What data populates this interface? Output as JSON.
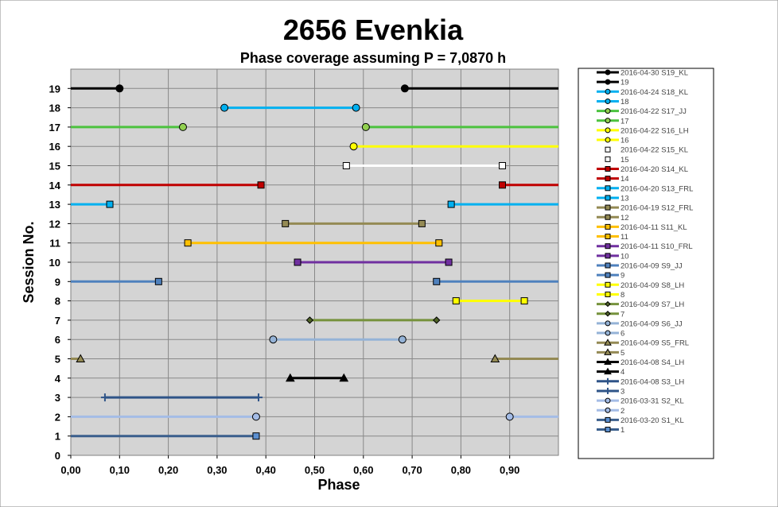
{
  "chart_data": {
    "type": "line",
    "title": "2656 Evenkia",
    "subtitle": "Phase coverage assuming P = 7,0870 h",
    "xlabel": "Phase",
    "ylabel": "Session No.",
    "xlim": [
      0,
      1
    ],
    "ylim": [
      0,
      19
    ],
    "x_ticks": [
      "0,00",
      "0,10",
      "0,20",
      "0,30",
      "0,40",
      "0,50",
      "0,60",
      "0,70",
      "0,80",
      "0,90"
    ],
    "y_ticks": [
      "0",
      "1",
      "2",
      "3",
      "4",
      "5",
      "6",
      "7",
      "8",
      "9",
      "10",
      "11",
      "12",
      "13",
      "14",
      "15",
      "16",
      "17",
      "18",
      "19"
    ],
    "grid": true,
    "legend_position": "right",
    "series": [
      {
        "name": "2016-03-20  S1_KL",
        "short": "1",
        "session": 1,
        "color": "#3a5e8c",
        "marker": "square",
        "marker_color": "#5b8fd0",
        "segments": [
          [
            0.0,
            0.38
          ]
        ]
      },
      {
        "name": "2016-03-31  S2_KL",
        "short": "2",
        "session": 2,
        "color": "#a4bce6",
        "marker": "circle",
        "marker_color": "#a4bce6",
        "segments": [
          [
            0.0,
            0.38
          ],
          [
            0.9,
            1.0
          ]
        ]
      },
      {
        "name": "2016-04-08  S3_LH",
        "short": "3",
        "session": 3,
        "color": "#2f5488",
        "marker": "plus",
        "marker_color": "#2f5488",
        "segments": [
          [
            0.07,
            0.385
          ]
        ]
      },
      {
        "name": "2016-04-08  S4_LH",
        "short": "4",
        "session": 4,
        "color": "#000000",
        "marker": "triangle",
        "marker_color": "#000000",
        "segments": [
          [
            0.45,
            0.56
          ]
        ]
      },
      {
        "name": "2016-04-09  S5_FRL",
        "short": "5",
        "session": 5,
        "color": "#948a54",
        "marker": "triangle",
        "marker_color": "#948a54",
        "segments": [
          [
            0.0,
            0.02
          ],
          [
            0.87,
            1.0
          ]
        ]
      },
      {
        "name": "2016-04-09  S6_JJ",
        "short": "6",
        "session": 6,
        "color": "#95b3d7",
        "marker": "circle",
        "marker_color": "#95b3d7",
        "segments": [
          [
            0.415,
            0.68
          ]
        ]
      },
      {
        "name": "2016-04-09  S7_LH",
        "short": "7",
        "session": 7,
        "color": "#76923c",
        "marker": "diamond",
        "marker_color": "#4f6228",
        "segments": [
          [
            0.49,
            0.75
          ]
        ]
      },
      {
        "name": "2016-04-09  S8_LH",
        "short": "8",
        "session": 8,
        "color": "#ffff00",
        "marker": "square",
        "marker_color": "#ffff00",
        "segments": [
          [
            0.79,
            0.93
          ]
        ]
      },
      {
        "name": "2016-04-09  S9_JJ",
        "short": "9",
        "session": 9,
        "color": "#4f81bd",
        "marker": "square",
        "marker_color": "#4f81bd",
        "segments": [
          [
            0.0,
            0.18
          ],
          [
            0.75,
            1.0
          ]
        ]
      },
      {
        "name": "2016-04-11  S10_FRL",
        "short": "10",
        "session": 10,
        "color": "#7030a0",
        "marker": "square",
        "marker_color": "#7030a0",
        "segments": [
          [
            0.465,
            0.775
          ]
        ]
      },
      {
        "name": "2016-04-11  S11_KL",
        "short": "11",
        "session": 11,
        "color": "#ffc000",
        "marker": "square",
        "marker_color": "#ffc000",
        "segments": [
          [
            0.24,
            0.755
          ]
        ]
      },
      {
        "name": "2016-04-19  S12_FRL",
        "short": "12",
        "session": 12,
        "color": "#948a54",
        "marker": "square",
        "marker_color": "#948a54",
        "segments": [
          [
            0.44,
            0.72
          ]
        ]
      },
      {
        "name": "2016-04-20  S13_FRL",
        "short": "13",
        "session": 13,
        "color": "#00b0f0",
        "marker": "square",
        "marker_color": "#00b0f0",
        "segments": [
          [
            0.0,
            0.08
          ],
          [
            0.78,
            1.0
          ]
        ]
      },
      {
        "name": "2016-04-20  S14_KL",
        "short": "14",
        "session": 14,
        "color": "#c00000",
        "marker": "square",
        "marker_color": "#c00000",
        "segments": [
          [
            0.0,
            0.39
          ],
          [
            0.885,
            1.0
          ]
        ]
      },
      {
        "name": "2016-04-22  S15_KL",
        "short": "15",
        "session": 15,
        "color": "#ffffff",
        "marker": "square",
        "marker_color": "#ffffff",
        "segments": [
          [
            0.565,
            0.885
          ]
        ]
      },
      {
        "name": "2016-04-22  S16_LH",
        "short": "16",
        "session": 16,
        "color": "#ffff00",
        "marker": "circle",
        "marker_color": "#ffff00",
        "segments": [
          [
            0.58,
            1.0
          ]
        ]
      },
      {
        "name": "2016-04-22  S17_JJ",
        "short": "17",
        "session": 17,
        "color": "#4cc23f",
        "marker": "circle",
        "marker_color": "#92d050",
        "segments": [
          [
            0.0,
            0.23
          ],
          [
            0.605,
            1.0
          ]
        ]
      },
      {
        "name": "2016-04-24  S18_KL",
        "short": "18",
        "session": 18,
        "color": "#00b0f0",
        "marker": "circle",
        "marker_color": "#00b0f0",
        "segments": [
          [
            0.315,
            0.585
          ]
        ]
      },
      {
        "name": "2016-04-30  S19_KL",
        "short": "19",
        "session": 19,
        "color": "#000000",
        "marker": "circle",
        "marker_color": "#000000",
        "segments": [
          [
            0.0,
            0.1
          ],
          [
            0.685,
            1.0
          ]
        ]
      }
    ]
  }
}
